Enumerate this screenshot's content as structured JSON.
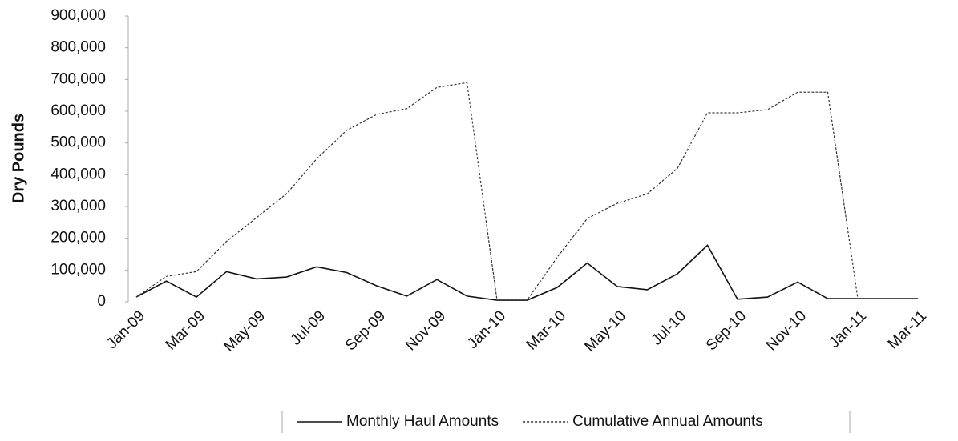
{
  "chart_data": {
    "type": "line",
    "y_label": "Dry Pounds",
    "categories": [
      "Jan-09",
      null,
      "Mar-09",
      null,
      "May-09",
      null,
      "Jul-09",
      null,
      "Sep-09",
      null,
      "Nov-09",
      null,
      "Jan-10",
      null,
      "Mar-10",
      null,
      "May-10",
      null,
      "Jul-10",
      null,
      "Sep-10",
      null,
      "Nov-10",
      null,
      "Jan-11",
      null,
      "Mar-11"
    ],
    "series": [
      {
        "name": "Monthly Haul Amounts",
        "color": "#111111",
        "style": "solid",
        "values": [
          15000,
          65000,
          15000,
          95000,
          72000,
          78000,
          110000,
          92000,
          50000,
          18000,
          70000,
          18000,
          5000,
          5000,
          45000,
          122000,
          48000,
          38000,
          88000,
          178000,
          8000,
          15000,
          62000,
          10000,
          10000,
          10000,
          10000
        ]
      },
      {
        "name": "Cumulative Annual Amounts",
        "color": "#333333",
        "style": "dashed",
        "values": [
          15000,
          80000,
          95000,
          190000,
          265000,
          340000,
          450000,
          540000,
          590000,
          608000,
          675000,
          690000,
          5000,
          5000,
          140000,
          262000,
          310000,
          340000,
          420000,
          595000,
          595000,
          605000,
          660000,
          660000,
          10000,
          10000,
          10000
        ]
      }
    ],
    "ylim": [
      0,
      900000
    ],
    "yticks": [
      0,
      {
        "value": 100000,
        "label": "100,000"
      },
      {
        "value": 200000,
        "label": "200,000"
      },
      {
        "value": 300000,
        "label": "300,000"
      },
      {
        "value": 400000,
        "label": "400,000"
      },
      {
        "value": 500000,
        "label": "500,000"
      },
      {
        "value": 600000,
        "label": "600,000"
      },
      {
        "value": 700000,
        "label": "700,000"
      },
      {
        "value": 800000,
        "label": "800,000"
      },
      {
        "value": 900000,
        "label": "900,000"
      }
    ],
    "grid": false,
    "legend": "bottom"
  }
}
